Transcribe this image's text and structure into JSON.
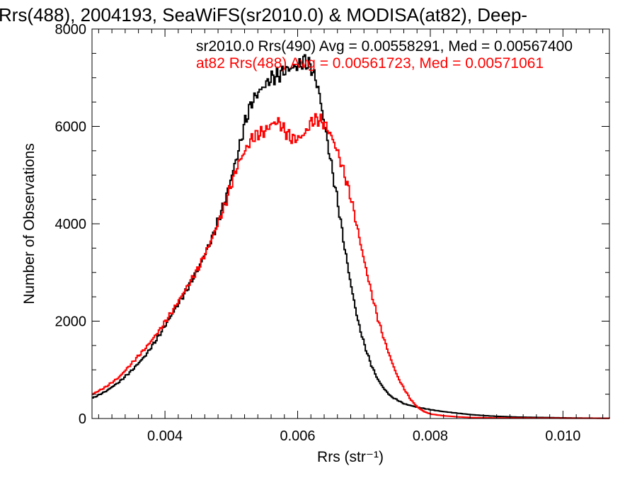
{
  "chart_data": {
    "type": "line",
    "step": true,
    "title": "Rrs(488), 2004193, SeaWiFS(sr2010.0) & MODISA(at82), Deep-",
    "xlabel": "Rrs (str⁻¹)",
    "ylabel": "Number of Observations",
    "xlim": [
      0.0029,
      0.0107
    ],
    "ylim": [
      0,
      8000
    ],
    "xticks": [
      {
        "value": 0.004,
        "label": "0.004"
      },
      {
        "value": 0.006,
        "label": "0.006"
      },
      {
        "value": 0.008,
        "label": "0.008"
      },
      {
        "value": 0.01,
        "label": "0.010"
      }
    ],
    "yticks": [
      {
        "value": 0,
        "label": "0"
      },
      {
        "value": 2000,
        "label": "2000"
      },
      {
        "value": 4000,
        "label": "4000"
      },
      {
        "value": 6000,
        "label": "6000"
      },
      {
        "value": 8000,
        "label": "8000"
      }
    ],
    "grid": false,
    "legend_placement": "top-right",
    "series": [
      {
        "name": "sr2010.0 Rrs(490) Avg = 0.00558291, Med = 0.00567400",
        "color": "#000000",
        "points": [
          [
            0.0029,
            420
          ],
          [
            0.0031,
            560
          ],
          [
            0.0033,
            750
          ],
          [
            0.0035,
            1000
          ],
          [
            0.0037,
            1300
          ],
          [
            0.0039,
            1700
          ],
          [
            0.0041,
            2150
          ],
          [
            0.0043,
            2600
          ],
          [
            0.0045,
            3100
          ],
          [
            0.0047,
            3700
          ],
          [
            0.0049,
            4500
          ],
          [
            0.005,
            5000
          ],
          [
            0.0051,
            5500
          ],
          [
            0.0052,
            6100
          ],
          [
            0.0053,
            6500
          ],
          [
            0.0054,
            6700
          ],
          [
            0.0055,
            6850
          ],
          [
            0.0056,
            7000
          ],
          [
            0.0057,
            7050
          ],
          [
            0.0058,
            7150
          ],
          [
            0.0059,
            7200
          ],
          [
            0.006,
            7250
          ],
          [
            0.0061,
            7350
          ],
          [
            0.0062,
            7200
          ],
          [
            0.0063,
            6800
          ],
          [
            0.0064,
            6000
          ],
          [
            0.0065,
            5200
          ],
          [
            0.0066,
            4400
          ],
          [
            0.0067,
            3500
          ],
          [
            0.0068,
            2700
          ],
          [
            0.0069,
            2000
          ],
          [
            0.007,
            1500
          ],
          [
            0.0071,
            1100
          ],
          [
            0.0072,
            800
          ],
          [
            0.0073,
            600
          ],
          [
            0.0074,
            450
          ],
          [
            0.0076,
            300
          ],
          [
            0.0078,
            230
          ],
          [
            0.008,
            180
          ],
          [
            0.0082,
            140
          ],
          [
            0.0084,
            110
          ],
          [
            0.0086,
            80
          ],
          [
            0.0088,
            60
          ],
          [
            0.009,
            45
          ],
          [
            0.0093,
            30
          ],
          [
            0.0097,
            20
          ],
          [
            0.0101,
            12
          ],
          [
            0.0107,
            5
          ]
        ]
      },
      {
        "name": "at82 Rrs(488) Avg = 0.00561723, Med = 0.00571061",
        "color": "#ff0000",
        "points": [
          [
            0.0029,
            500
          ],
          [
            0.0031,
            650
          ],
          [
            0.0033,
            850
          ],
          [
            0.0035,
            1150
          ],
          [
            0.0037,
            1450
          ],
          [
            0.0039,
            1800
          ],
          [
            0.0041,
            2200
          ],
          [
            0.0043,
            2650
          ],
          [
            0.0045,
            3100
          ],
          [
            0.0047,
            3700
          ],
          [
            0.0049,
            4400
          ],
          [
            0.005,
            4850
          ],
          [
            0.0051,
            5250
          ],
          [
            0.0052,
            5500
          ],
          [
            0.0053,
            5750
          ],
          [
            0.0054,
            5850
          ],
          [
            0.0055,
            5900
          ],
          [
            0.0056,
            6050
          ],
          [
            0.0057,
            6100
          ],
          [
            0.0058,
            5900
          ],
          [
            0.0059,
            5750
          ],
          [
            0.006,
            5750
          ],
          [
            0.0061,
            5850
          ],
          [
            0.0062,
            6100
          ],
          [
            0.0063,
            6150
          ],
          [
            0.0064,
            6050
          ],
          [
            0.0065,
            5800
          ],
          [
            0.0066,
            5450
          ],
          [
            0.0067,
            5000
          ],
          [
            0.0068,
            4500
          ],
          [
            0.0069,
            3850
          ],
          [
            0.007,
            3200
          ],
          [
            0.0071,
            2600
          ],
          [
            0.0072,
            2050
          ],
          [
            0.0073,
            1600
          ],
          [
            0.0074,
            1200
          ],
          [
            0.0075,
            850
          ],
          [
            0.0076,
            600
          ],
          [
            0.0077,
            380
          ],
          [
            0.0078,
            230
          ],
          [
            0.0079,
            140
          ],
          [
            0.008,
            90
          ],
          [
            0.0082,
            55
          ],
          [
            0.0084,
            35
          ],
          [
            0.0086,
            20
          ],
          [
            0.009,
            12
          ],
          [
            0.0095,
            8
          ],
          [
            0.0107,
            4
          ]
        ]
      }
    ]
  }
}
